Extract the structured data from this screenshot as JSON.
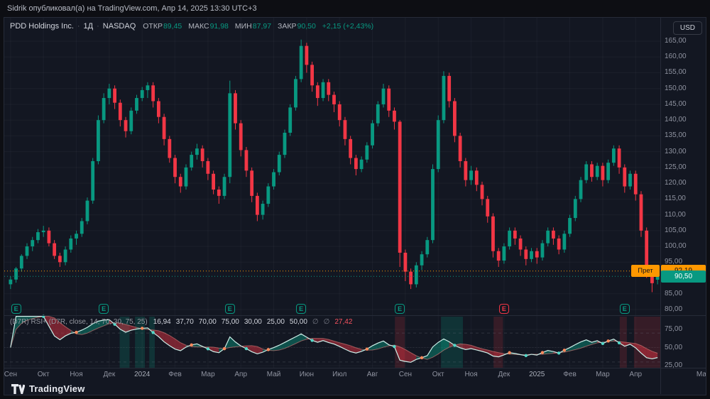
{
  "topbar": {
    "attribution": "Sidrik опубликовал(а) на TradingView.com, Апр 14, 2025 13:30 UTC+3"
  },
  "header": {
    "symbol_title": "PDD Holdings Inc.",
    "sep": "·",
    "interval": "1Д",
    "exchange": "NASDAQ",
    "fields": [
      {
        "label": "ОТКР",
        "value": "89,45"
      },
      {
        "label": "МАКС",
        "value": "91,98"
      },
      {
        "label": "МИН",
        "value": "87,97"
      },
      {
        "label": "ЗАКР",
        "value": "90,50"
      }
    ],
    "change": "+2,15 (+2,43%)",
    "currency_button": "USD"
  },
  "indicator": {
    "name": "(D7R) RSI+ (D7R, close, 14, 70, 30, 75, 25)",
    "values": [
      {
        "text": "16,94",
        "color": "#d1d4dc"
      },
      {
        "text": "37,70",
        "color": "#d1d4dc"
      },
      {
        "text": "70,00",
        "color": "#d1d4dc"
      },
      {
        "text": "75,00",
        "color": "#d1d4dc"
      },
      {
        "text": "30,00",
        "color": "#d1d4dc"
      },
      {
        "text": "25,00",
        "color": "#d1d4dc"
      },
      {
        "text": "50,00",
        "color": "#d1d4dc"
      },
      {
        "text": "∅",
        "color": "#787b86"
      },
      {
        "text": "∅",
        "color": "#787b86"
      },
      {
        "text": "27,42",
        "color": "#f7525f"
      }
    ]
  },
  "footer": {
    "brand": "TradingView"
  },
  "chart_data": {
    "type": "candlestick+rsi",
    "symbol": "PDD",
    "interval": "1D",
    "earnings_label": "E",
    "candles": [
      [
        88,
        90.5,
        86.5,
        89.5
      ],
      [
        89.5,
        93.5,
        88.5,
        93
      ],
      [
        93,
        97.5,
        92,
        97
      ],
      [
        97,
        101,
        96,
        100
      ],
      [
        100,
        103,
        98.5,
        102
      ],
      [
        102,
        105.5,
        101,
        104.5
      ],
      [
        104.5,
        106.5,
        103,
        105
      ],
      [
        105,
        106,
        100,
        101
      ],
      [
        101,
        102,
        96,
        97
      ],
      [
        97,
        98,
        93.5,
        95
      ],
      [
        95,
        100,
        94,
        99
      ],
      [
        99,
        103.5,
        98,
        102.5
      ],
      [
        102.5,
        105,
        100.5,
        104
      ],
      [
        104,
        109,
        103,
        108
      ],
      [
        108,
        115.5,
        107,
        114.5
      ],
      [
        114.5,
        128,
        113.5,
        127
      ],
      [
        127,
        141.5,
        126,
        140
      ],
      [
        140,
        148.5,
        139,
        147
      ],
      [
        147,
        151.5,
        145,
        150
      ],
      [
        150,
        151,
        143.5,
        145.5
      ],
      [
        145.5,
        146.5,
        138,
        140
      ],
      [
        140,
        141,
        134.5,
        136.5
      ],
      [
        136.5,
        144,
        135.5,
        143
      ],
      [
        143,
        148,
        142,
        147
      ],
      [
        147,
        150.5,
        146,
        149.5
      ],
      [
        149.5,
        152,
        147,
        151
      ],
      [
        151,
        152,
        144,
        146
      ],
      [
        146,
        147,
        139,
        141
      ],
      [
        141,
        142,
        132,
        134
      ],
      [
        134,
        135,
        126.5,
        128
      ],
      [
        128,
        129,
        120,
        122
      ],
      [
        122,
        123,
        117,
        119
      ],
      [
        119,
        126,
        118,
        125
      ],
      [
        125,
        130,
        124,
        129
      ],
      [
        129,
        132.5,
        127.5,
        131
      ],
      [
        131,
        132,
        125,
        127
      ],
      [
        127,
        128,
        121,
        123
      ],
      [
        123,
        124,
        116.5,
        118
      ],
      [
        118,
        119,
        113.5,
        116
      ],
      [
        116,
        123,
        115,
        122
      ],
      [
        122,
        152.5,
        120,
        148.5
      ],
      [
        148.5,
        149.5,
        137,
        139
      ],
      [
        139,
        140,
        128.5,
        130.5
      ],
      [
        130.5,
        131.5,
        122,
        124
      ],
      [
        124,
        125,
        114,
        116
      ],
      [
        116,
        117,
        108,
        110
      ],
      [
        110,
        114.5,
        108.5,
        113.5
      ],
      [
        113.5,
        120,
        112.5,
        119
      ],
      [
        119,
        124.5,
        118,
        123.5
      ],
      [
        123.5,
        130,
        122.5,
        129
      ],
      [
        129,
        137,
        128,
        136
      ],
      [
        136,
        145,
        135,
        144
      ],
      [
        144,
        154,
        143,
        153
      ],
      [
        153,
        165.5,
        152,
        163.5
      ],
      [
        163.5,
        164.5,
        155,
        157.5
      ],
      [
        157.5,
        158.5,
        149,
        151
      ],
      [
        151,
        152,
        144.5,
        147
      ],
      [
        147,
        153,
        146,
        152
      ],
      [
        152,
        153,
        146,
        148
      ],
      [
        148,
        149,
        142.5,
        145
      ],
      [
        145,
        146,
        138,
        140
      ],
      [
        140,
        141,
        132,
        134
      ],
      [
        134,
        135,
        126,
        128
      ],
      [
        128,
        129,
        122.5,
        124.5
      ],
      [
        124.5,
        128.5,
        123.5,
        127.5
      ],
      [
        127.5,
        133,
        126.5,
        132
      ],
      [
        132,
        140,
        131,
        139
      ],
      [
        139,
        146,
        138,
        145
      ],
      [
        145,
        151.5,
        144,
        150
      ],
      [
        150,
        151,
        141,
        143
      ],
      [
        143,
        144,
        137,
        139.5
      ],
      [
        139.5,
        140,
        93.5,
        98
      ],
      [
        98,
        99,
        89,
        92
      ],
      [
        92,
        93,
        86.5,
        88
      ],
      [
        88,
        95,
        87,
        94
      ],
      [
        94,
        98.5,
        92.5,
        97.5
      ],
      [
        97.5,
        103,
        96.5,
        102
      ],
      [
        102,
        126,
        101,
        124.5
      ],
      [
        124.5,
        141.5,
        123.5,
        140
      ],
      [
        140,
        155.5,
        139,
        154
      ],
      [
        154,
        155,
        144,
        146
      ],
      [
        146,
        147,
        133,
        135
      ],
      [
        135,
        136,
        125,
        127
      ],
      [
        127,
        128,
        119,
        121
      ],
      [
        121,
        125.5,
        119.5,
        124
      ],
      [
        124,
        125,
        117.5,
        119.5
      ],
      [
        119.5,
        120.5,
        113,
        115
      ],
      [
        115,
        116,
        107.5,
        109.5
      ],
      [
        109.5,
        110.5,
        96.5,
        98.5
      ],
      [
        98.5,
        99.5,
        93.5,
        95.5
      ],
      [
        95.5,
        101,
        94.5,
        100
      ],
      [
        100,
        106,
        99,
        105
      ],
      [
        105,
        106,
        100.5,
        102.5
      ],
      [
        102.5,
        103.5,
        97,
        99
      ],
      [
        99,
        100,
        94,
        96
      ],
      [
        96,
        99.5,
        95,
        98.5
      ],
      [
        98.5,
        99.5,
        94.5,
        96.5
      ],
      [
        96.5,
        102,
        95.5,
        101
      ],
      [
        101,
        106,
        100,
        105
      ],
      [
        105,
        106,
        100.5,
        102.5
      ],
      [
        102.5,
        103.5,
        97.5,
        99
      ],
      [
        99,
        105,
        98,
        104
      ],
      [
        104,
        110,
        103,
        109
      ],
      [
        109,
        116,
        108,
        115
      ],
      [
        115,
        122,
        114,
        121
      ],
      [
        121,
        127,
        120,
        126
      ],
      [
        126,
        127,
        120.5,
        122
      ],
      [
        122,
        126.5,
        121,
        125.5
      ],
      [
        125.5,
        126.5,
        119,
        121
      ],
      [
        121,
        127.5,
        120,
        126.5
      ],
      [
        126.5,
        132,
        125.5,
        131
      ],
      [
        131,
        132,
        123,
        125
      ],
      [
        125,
        126,
        117,
        119
      ],
      [
        119,
        124,
        118,
        123
      ],
      [
        123,
        124,
        114.5,
        116.5
      ],
      [
        116.5,
        117.5,
        103,
        105
      ],
      [
        105,
        106,
        90,
        92
      ],
      [
        92,
        93,
        85.5,
        88.35
      ],
      [
        89.45,
        91.98,
        87.97,
        90.5
      ]
    ],
    "time_labels": [
      {
        "i": 0,
        "t": "Сен"
      },
      {
        "i": 6,
        "t": "Окт"
      },
      {
        "i": 12,
        "t": "Ноя"
      },
      {
        "i": 18,
        "t": "Дек"
      },
      {
        "i": 24,
        "t": "2024",
        "year": true
      },
      {
        "i": 30,
        "t": "Фев"
      },
      {
        "i": 36,
        "t": "Мар"
      },
      {
        "i": 42,
        "t": "Апр"
      },
      {
        "i": 48,
        "t": "Май"
      },
      {
        "i": 54,
        "t": "Июн"
      },
      {
        "i": 60,
        "t": "Июл"
      },
      {
        "i": 66,
        "t": "Авг"
      },
      {
        "i": 72,
        "t": "Сен"
      },
      {
        "i": 78,
        "t": "Окт"
      },
      {
        "i": 84,
        "t": "Ноя"
      },
      {
        "i": 90,
        "t": "Дек"
      },
      {
        "i": 96,
        "t": "2025",
        "year": true
      },
      {
        "i": 102,
        "t": "Фев"
      },
      {
        "i": 108,
        "t": "Мар"
      },
      {
        "i": 114,
        "t": "Апр"
      },
      {
        "i": 126,
        "t": "Ма"
      }
    ],
    "price_axis": {
      "ticks": [
        165,
        160,
        155,
        150,
        145,
        140,
        135,
        130,
        125,
        120,
        115,
        110,
        105,
        100,
        95,
        85,
        80
      ]
    },
    "rsi_axis": {
      "ticks": [
        75,
        50,
        25
      ],
      "range": [
        20,
        95
      ],
      "bands": [
        70,
        30,
        50
      ]
    },
    "price_lines": [
      {
        "tag": "Прет",
        "text": "92,19",
        "value": 92.19,
        "color": "#ff9800",
        "text_color": "#10131a"
      },
      {
        "text": "90,50",
        "value": 90.5,
        "color": "#089981",
        "text_color": "#ffffff"
      }
    ],
    "earnings_markers": [
      {
        "i": 1,
        "type": "up"
      },
      {
        "i": 17,
        "type": "up"
      },
      {
        "i": 40,
        "type": "up"
      },
      {
        "i": 53,
        "type": "up"
      },
      {
        "i": 71,
        "type": "up"
      },
      {
        "i": 90,
        "type": "down"
      },
      {
        "i": 112,
        "type": "up"
      }
    ],
    "zones": [
      {
        "from": 20.4,
        "to": 22.2,
        "type": "up"
      },
      {
        "from": 23.2,
        "to": 25,
        "type": "up"
      },
      {
        "from": 25.8,
        "to": 26.8,
        "type": "up"
      },
      {
        "from": 70.6,
        "to": 72.4,
        "type": "down"
      },
      {
        "from": 79,
        "to": 83,
        "type": "up"
      },
      {
        "from": 88.6,
        "to": 90.3,
        "type": "down"
      },
      {
        "from": 111.6,
        "to": 112.9,
        "type": "down"
      },
      {
        "from": 114.2,
        "to": 119,
        "type": "down"
      }
    ],
    "colors": {
      "up": "#089981",
      "down": "#f23645",
      "grid": "rgba(140,144,156,0.07)",
      "frame": "#262b38",
      "zone_up": "rgba(8,153,129,0.22)",
      "zone_down": "rgba(242,54,69,0.16)",
      "rsi_fast_line": "#cdeee8",
      "rsi_slow_line": "rgba(220,130,125,0.6)",
      "dot_high": "#53d6c7",
      "dot_low": "#ff8a5c"
    }
  }
}
